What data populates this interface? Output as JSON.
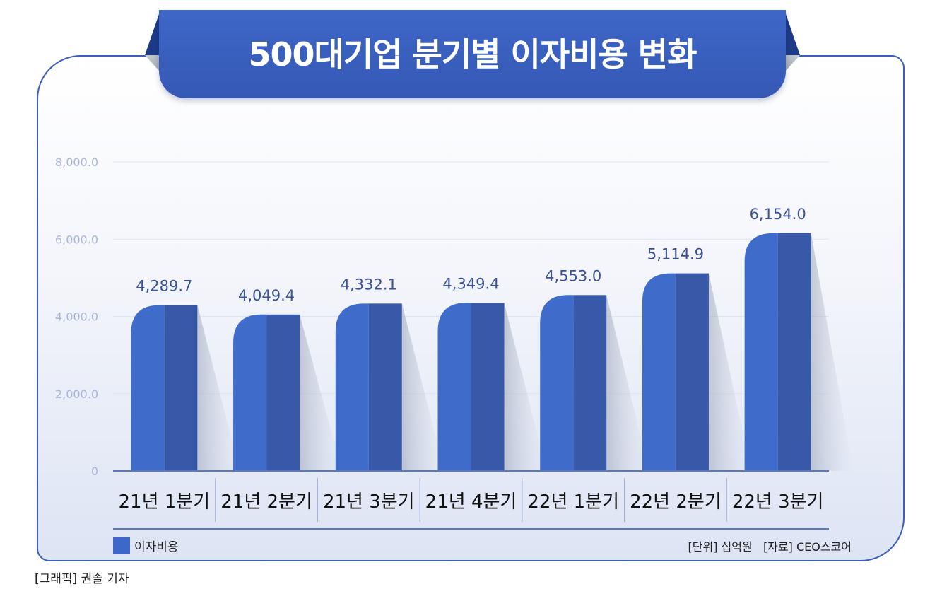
{
  "title": "500대기업 분기별 이자비용 변화",
  "legend": {
    "label": "이자비용",
    "color": "#3d68c9"
  },
  "unit_source": "[단위] 십억원   [자료] CEO스코어",
  "credit": "[그래픽] 권솔 기자",
  "colors": {
    "bar_light": "#3f6bcb",
    "bar_dark": "#3858a8",
    "axis": "#5b76c2",
    "banner": "#3a61c2"
  },
  "chart_data": {
    "type": "bar",
    "title": "500대기업 분기별 이자비용 변화",
    "categories": [
      "21년 1분기",
      "21년 2분기",
      "21년 3분기",
      "21년 4분기",
      "22년 1분기",
      "22년 2분기",
      "22년 3분기"
    ],
    "series": [
      {
        "name": "이자비용",
        "values": [
          4289.7,
          4049.4,
          4332.1,
          4349.4,
          4553.0,
          5114.9,
          6154.0
        ]
      }
    ],
    "value_labels": [
      "4,289.7",
      "4,049.4",
      "4,332.1",
      "4,349.4",
      "4,553.0",
      "5,114.9",
      "6,154.0"
    ],
    "yticks": [
      0,
      2000,
      4000,
      6000,
      8000
    ],
    "ytick_labels": [
      "0",
      "2,000.0",
      "4,000.0",
      "6,000.0",
      "8,000.0"
    ],
    "ylim": [
      0,
      8000
    ],
    "grid": true,
    "legend_position": "bottom-left"
  }
}
